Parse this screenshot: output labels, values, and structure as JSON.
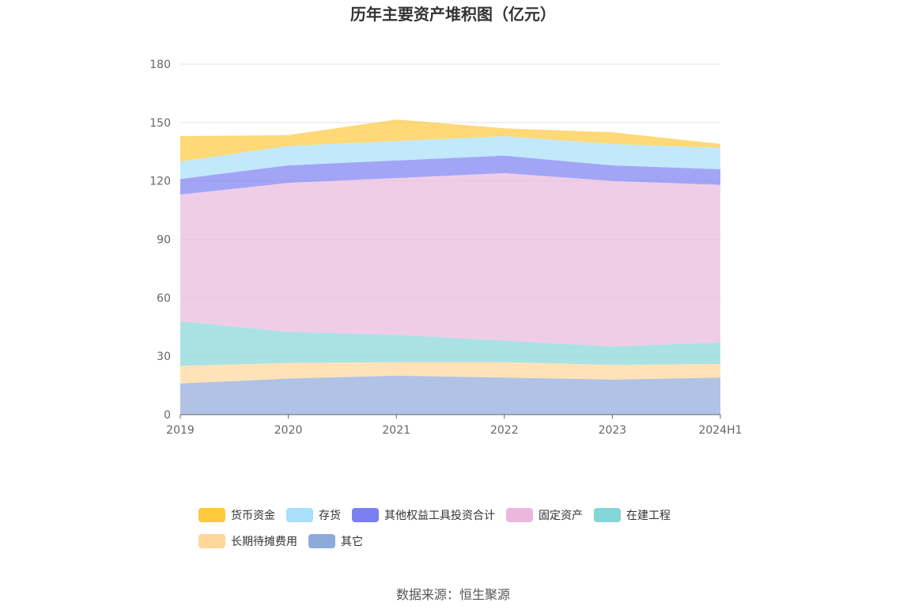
{
  "chart_data": {
    "type": "area",
    "stacked": true,
    "title": "历年主要资产堆积图（亿元）",
    "categories": [
      "2019",
      "2020",
      "2021",
      "2022",
      "2023",
      "2024H1"
    ],
    "ylim": [
      0,
      180
    ],
    "yticks": [
      "0",
      "30",
      "60",
      "90",
      "120",
      "150",
      "180"
    ],
    "grid": true,
    "legend_position": "bottom",
    "series": [
      {
        "name": "其它",
        "color": "#8EAADB",
        "values": [
          16,
          18.5,
          20,
          19,
          18,
          19
        ]
      },
      {
        "name": "长期待摊费用",
        "color": "#FFD699",
        "values": [
          9,
          8,
          7,
          8,
          7.5,
          7
        ]
      },
      {
        "name": "在建工程",
        "color": "#86D5D8",
        "values": [
          23,
          16,
          14,
          11,
          9.5,
          11
        ]
      },
      {
        "name": "固定资产",
        "color": "#E9B8DC",
        "values": [
          65,
          76.5,
          80.5,
          86,
          85,
          81
        ]
      },
      {
        "name": "其他权益工具投资合计",
        "color": "#7A7FF2",
        "values": [
          8,
          9,
          9,
          9,
          8,
          8
        ]
      },
      {
        "name": "存货",
        "color": "#A8DFF9",
        "values": [
          9,
          10,
          10,
          10,
          11,
          11
        ]
      },
      {
        "name": "货币资金",
        "color": "#FFC83D",
        "values": [
          13,
          5.5,
          11,
          4,
          6,
          2
        ]
      }
    ],
    "legend_order": [
      "货币资金",
      "存货",
      "其他权益工具投资合计",
      "固定资产",
      "在建工程",
      "长期待摊费用",
      "其它"
    ]
  },
  "source": "数据来源：恒生聚源"
}
